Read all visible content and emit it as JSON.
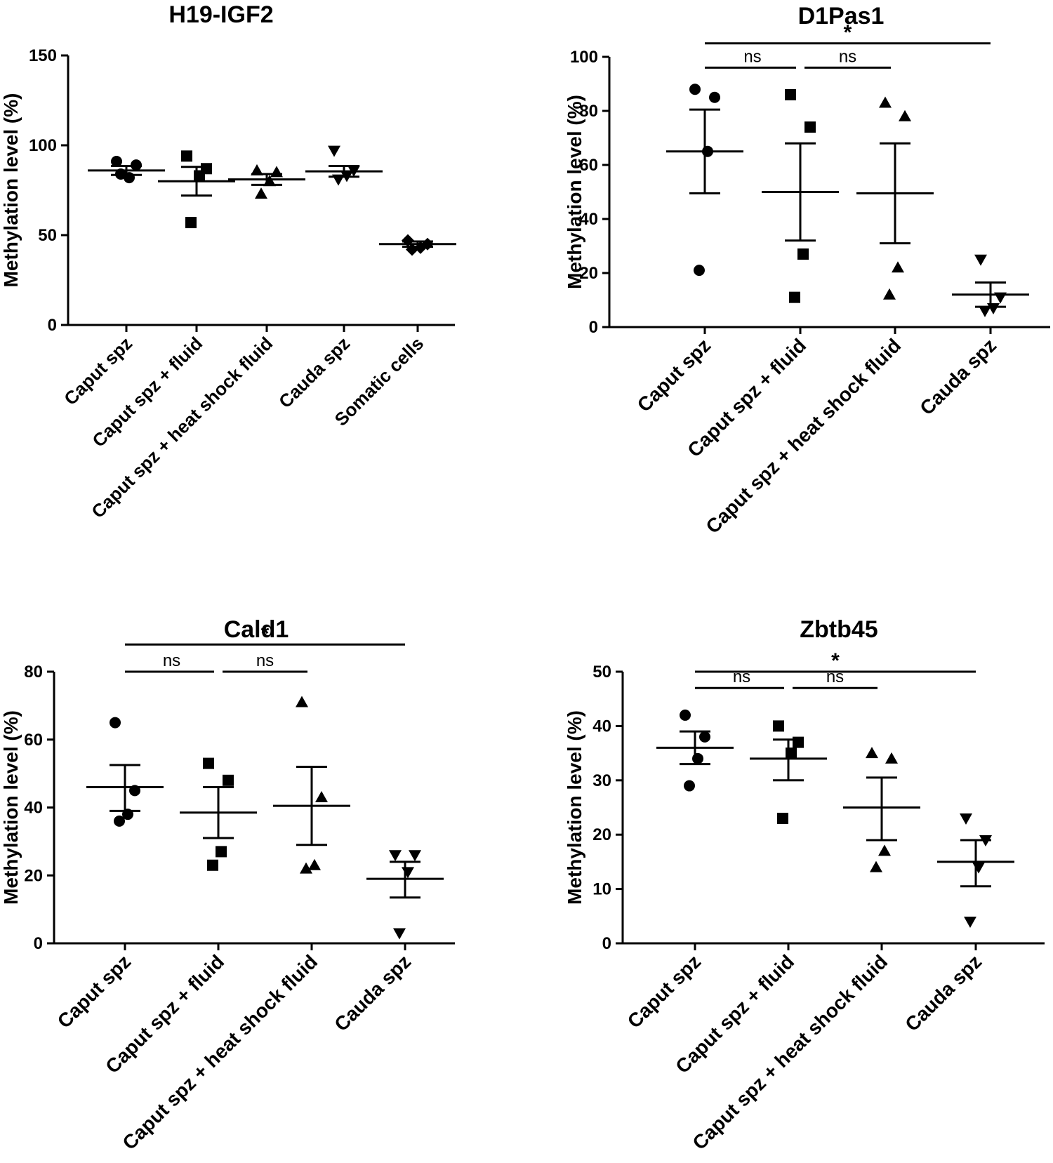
{
  "chart_data": [
    {
      "type": "scatter",
      "title": "H19-IGF2",
      "ylabel": "Methylation level (%)",
      "xlabel": "",
      "ylim": [
        0,
        150
      ],
      "yticks": [
        0,
        50,
        100,
        150
      ],
      "yticks_text": [
        "0",
        "50",
        "100",
        "150"
      ],
      "categories": [
        "Caput spz",
        "Caput spz + fluid",
        "Caput spz + heat shock fluid",
        "Cauda spz",
        "Somatic cells"
      ],
      "markers": [
        "circle",
        "square",
        "triangle-up",
        "triangle-down",
        "diamond"
      ],
      "series": [
        {
          "name": "Caput spz",
          "values": [
            91,
            89,
            82,
            84
          ],
          "mean": 86,
          "sem_upper": 88.5,
          "sem_lower": 83.5
        },
        {
          "name": "Caput spz + fluid",
          "values": [
            94,
            87,
            83,
            57
          ],
          "mean": 80,
          "sem_upper": 88,
          "sem_lower": 72
        },
        {
          "name": "Caput spz + heat shock fluid",
          "values": [
            86,
            85,
            80,
            73
          ],
          "mean": 81,
          "sem_upper": 84,
          "sem_lower": 78
        },
        {
          "name": "Cauda spz",
          "values": [
            97,
            86,
            83,
            81
          ],
          "mean": 85.5,
          "sem_upper": 88.5,
          "sem_lower": 82.5
        },
        {
          "name": "Somatic cells",
          "values": [
            47,
            45,
            43,
            42
          ],
          "mean": 45,
          "sem_upper": 46.5,
          "sem_lower": 43.5
        }
      ],
      "significance": []
    },
    {
      "type": "scatter",
      "title": "D1Pas1",
      "ylabel": "Methylation level (%)",
      "xlabel": "",
      "ylim": [
        0,
        100
      ],
      "yticks": [
        0,
        20,
        40,
        60,
        80,
        100
      ],
      "yticks_text": [
        "0",
        "20",
        "40",
        "60",
        "80",
        "100"
      ],
      "categories": [
        "Caput spz",
        "Caput spz + fluid",
        "Caput spz + heat shock fluid",
        "Cauda spz"
      ],
      "markers": [
        "circle",
        "square",
        "triangle-up",
        "triangle-down"
      ],
      "series": [
        {
          "name": "Caput spz",
          "values": [
            88,
            85,
            65,
            21
          ],
          "mean": 65,
          "sem_upper": 80.5,
          "sem_lower": 49.5
        },
        {
          "name": "Caput spz + fluid",
          "values": [
            86,
            74,
            27,
            11
          ],
          "mean": 50,
          "sem_upper": 68,
          "sem_lower": 32
        },
        {
          "name": "Caput spz + heat shock fluid",
          "values": [
            83,
            78,
            22,
            12
          ],
          "mean": 49.5,
          "sem_upper": 68,
          "sem_lower": 31
        },
        {
          "name": "Cauda spz",
          "values": [
            25,
            11,
            7,
            6
          ],
          "mean": 12,
          "sem_upper": 16.5,
          "sem_lower": 7.5
        }
      ],
      "significance": [
        {
          "label": "*",
          "from": 0,
          "to": 3,
          "level": 105
        },
        {
          "label": "ns",
          "from": 0,
          "to": 1,
          "level": 96
        },
        {
          "label": "ns",
          "from": 1,
          "to": 2,
          "level": 96
        }
      ]
    },
    {
      "type": "scatter",
      "title": "Cald1",
      "ylabel": "Methylation level (%)",
      "xlabel": "",
      "ylim": [
        0,
        80
      ],
      "yticks": [
        0,
        20,
        40,
        60,
        80
      ],
      "yticks_text": [
        "0",
        "20",
        "40",
        "60",
        "80"
      ],
      "categories": [
        "Caput spz",
        "Caput spz + fluid",
        "Caput spz + heat shock fluid",
        "Cauda spz"
      ],
      "markers": [
        "circle",
        "square",
        "triangle-up",
        "triangle-down"
      ],
      "series": [
        {
          "name": "Caput spz",
          "values": [
            65,
            45,
            38,
            36
          ],
          "mean": 46,
          "sem_upper": 52.5,
          "sem_lower": 39
        },
        {
          "name": "Caput spz + fluid",
          "values": [
            53,
            48,
            27,
            23
          ],
          "mean": 38.5,
          "sem_upper": 46,
          "sem_lower": 31
        },
        {
          "name": "Caput spz + heat shock fluid",
          "values": [
            71,
            43,
            23,
            22
          ],
          "mean": 40.5,
          "sem_upper": 52,
          "sem_lower": 29
        },
        {
          "name": "Cauda spz",
          "values": [
            26,
            26,
            21,
            3
          ],
          "mean": 19,
          "sem_upper": 24,
          "sem_lower": 13.5
        }
      ],
      "significance": [
        {
          "label": "*",
          "from": 0,
          "to": 3,
          "level": 88
        },
        {
          "label": "ns",
          "from": 0,
          "to": 1,
          "level": 80
        },
        {
          "label": "ns",
          "from": 1,
          "to": 2,
          "level": 80
        }
      ]
    },
    {
      "type": "scatter",
      "title": "Zbtb45",
      "ylabel": "Methylation level (%)",
      "xlabel": "",
      "ylim": [
        0,
        50
      ],
      "yticks": [
        0,
        10,
        20,
        30,
        40,
        50
      ],
      "yticks_text": [
        "0",
        "10",
        "20",
        "30",
        "40",
        "50"
      ],
      "categories": [
        "Caput spz",
        "Caput spz + fluid",
        "Caput spz + heat shock fluid",
        "Cauda spz"
      ],
      "markers": [
        "circle",
        "square",
        "triangle-up",
        "triangle-down"
      ],
      "series": [
        {
          "name": "Caput spz",
          "values": [
            42,
            38,
            34,
            29
          ],
          "mean": 36,
          "sem_upper": 39,
          "sem_lower": 33
        },
        {
          "name": "Caput spz + fluid",
          "values": [
            40,
            37,
            35,
            23
          ],
          "mean": 34,
          "sem_upper": 37.5,
          "sem_lower": 30
        },
        {
          "name": "Caput spz + heat shock fluid",
          "values": [
            35,
            34,
            17,
            14
          ],
          "mean": 25,
          "sem_upper": 30.5,
          "sem_lower": 19
        },
        {
          "name": "Cauda spz",
          "values": [
            23,
            19,
            14,
            4
          ],
          "mean": 15,
          "sem_upper": 19,
          "sem_lower": 10.5
        }
      ],
      "significance": [
        {
          "label": "*",
          "from": 0,
          "to": 3,
          "level": 50
        },
        {
          "label": "ns",
          "from": 0,
          "to": 1,
          "level": 47
        },
        {
          "label": "ns",
          "from": 1,
          "to": 2,
          "level": 47
        }
      ]
    }
  ]
}
